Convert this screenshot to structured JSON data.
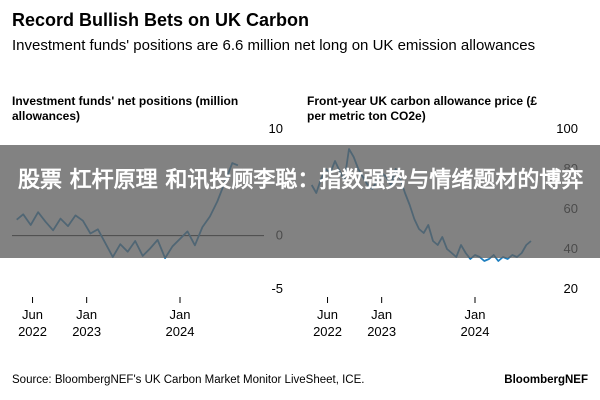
{
  "title": "Record Bullish Bets on UK Carbon",
  "subtitle": "Investment funds' positions are 6.6 million net long on UK emission allowances",
  "source": "Source: BloombergNEF's UK Carbon Market Monitor LiveSheet, ICE.",
  "brand": "BloombergNEF",
  "overlay_text": "股票 杠杆原理 和讯投顾李聪：指数强势与情绪题材的博弈",
  "colors": {
    "line": "#1f7fbf",
    "zero_line": "#000000",
    "overlay": "#5f5f5f"
  },
  "chart_data": [
    {
      "type": "line",
      "title": "Investment funds' net positions (million allowances)",
      "x_tick_labels": [
        [
          "Jun",
          "2022"
        ],
        [
          "Jan",
          "2023"
        ],
        [
          "Jan",
          "2024"
        ]
      ],
      "x_ticks": [
        2022.42,
        2023.0,
        2024.0
      ],
      "y_tick_labels": [
        "10",
        "0",
        "-5"
      ],
      "y_ticks": [
        10,
        0,
        -5
      ],
      "ylim": [
        -5,
        10
      ],
      "xlim": [
        2022.2,
        2024.75
      ],
      "zero_line": 0,
      "x": [
        2022.25,
        2022.32,
        2022.4,
        2022.48,
        2022.56,
        2022.64,
        2022.72,
        2022.8,
        2022.88,
        2022.96,
        2023.04,
        2023.12,
        2023.2,
        2023.28,
        2023.36,
        2023.44,
        2023.52,
        2023.6,
        2023.68,
        2023.76,
        2023.84,
        2023.92,
        2024.0,
        2024.08,
        2024.16,
        2024.24,
        2024.32,
        2024.4,
        2024.48,
        2024.56,
        2024.62
      ],
      "series": [
        {
          "values": [
            1.5,
            2.0,
            1.0,
            2.2,
            1.3,
            0.5,
            1.6,
            0.9,
            1.9,
            1.4,
            0.2,
            0.6,
            -0.7,
            -2.0,
            -0.8,
            -1.5,
            -0.5,
            -1.9,
            -1.2,
            -0.4,
            -2.1,
            -1.0,
            -0.3,
            0.4,
            -0.9,
            0.8,
            1.8,
            3.2,
            5.0,
            6.8,
            6.6
          ]
        }
      ]
    },
    {
      "type": "line",
      "title": "Front-year UK carbon allowance price (£ per metric ton CO2e)",
      "x_tick_labels": [
        [
          "Jun",
          "2022"
        ],
        [
          "Jan",
          "2023"
        ],
        [
          "Jan",
          "2024"
        ]
      ],
      "x_ticks": [
        2022.42,
        2023.0,
        2024.0
      ],
      "y_tick_labels": [
        "100",
        "80",
        "60",
        "40",
        "20"
      ],
      "y_ticks": [
        100,
        80,
        60,
        40,
        20
      ],
      "ylim": [
        20,
        100
      ],
      "xlim": [
        2022.2,
        2024.75
      ],
      "x": [
        2022.25,
        2022.3,
        2022.35,
        2022.4,
        2022.45,
        2022.5,
        2022.55,
        2022.6,
        2022.65,
        2022.7,
        2022.75,
        2022.8,
        2022.85,
        2022.9,
        2022.95,
        2023.0,
        2023.05,
        2023.1,
        2023.15,
        2023.2,
        2023.25,
        2023.3,
        2023.35,
        2023.4,
        2023.45,
        2023.5,
        2023.55,
        2023.6,
        2023.65,
        2023.7,
        2023.75,
        2023.8,
        2023.85,
        2023.9,
        2023.95,
        2024.0,
        2024.05,
        2024.1,
        2024.15,
        2024.2,
        2024.25,
        2024.3,
        2024.35,
        2024.4,
        2024.45,
        2024.5,
        2024.55,
        2024.6
      ],
      "series": [
        {
          "values": [
            72,
            68,
            75,
            80,
            78,
            84,
            79,
            74,
            90,
            86,
            80,
            76,
            72,
            70,
            74,
            78,
            76,
            72,
            80,
            75,
            68,
            62,
            55,
            50,
            48,
            52,
            44,
            42,
            46,
            40,
            38,
            36,
            42,
            38,
            35,
            37,
            36,
            34,
            35,
            37,
            34,
            36,
            35,
            37,
            36,
            38,
            42,
            44
          ]
        }
      ]
    }
  ]
}
